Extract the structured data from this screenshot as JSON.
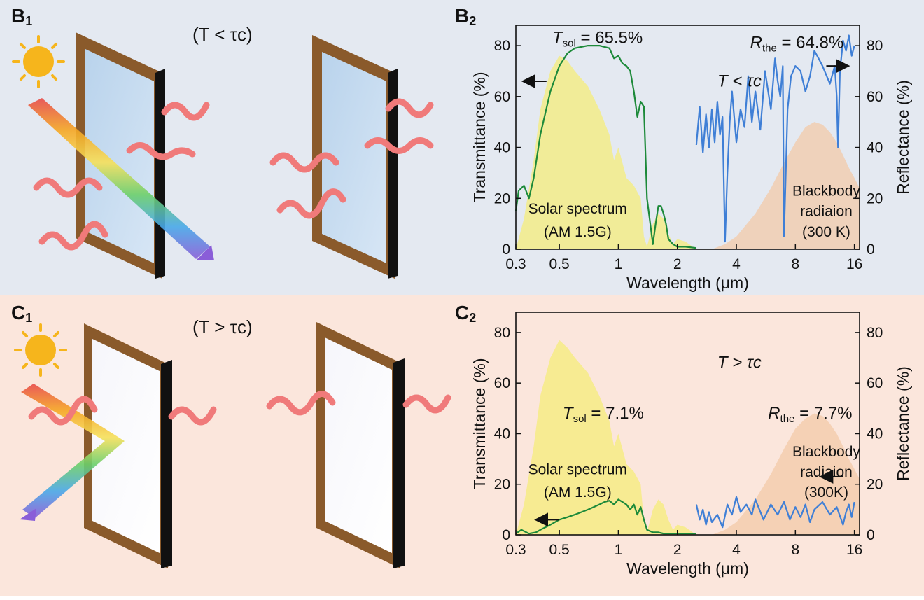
{
  "panels": {
    "top": {
      "label_left": "B",
      "label_left_sub": "1",
      "label_right": "B",
      "label_right_sub": "2",
      "condition": "(T < τc)",
      "background": "#e4e9f1"
    },
    "bottom": {
      "label_left": "C",
      "label_left_sub": "1",
      "label_right": "C",
      "label_right_sub": "2",
      "condition": "(T > τc)",
      "background": "#fbe6dc"
    }
  },
  "icons": {
    "sun": "sun-icon",
    "moon": "crescent-moon-icon",
    "window": "window-icon",
    "heat_wave": "heat-wave-arrow-icon",
    "sunlight_beam": "rainbow-sunlight-beam-icon"
  },
  "colors": {
    "transmittance": "#1d8a3a",
    "reflectance": "#3f7fd6",
    "solar_fill": "#f5ec7a",
    "blackbody_fill": "#f3c9a8",
    "heat_wave": "#f07a7a",
    "sun": "#f6b51c",
    "moon": "#3d86d6",
    "frame": "#8a5a2b"
  },
  "chart_data": [
    {
      "type": "line",
      "panel": "B2",
      "xlabel": "Wavelength (μm)",
      "ylabel": "Transmittance (%)",
      "ylabel_right": "Reflectance (%)",
      "x_scale": "log",
      "xlim": [
        0.3,
        17
      ],
      "ylim": [
        0,
        88
      ],
      "xticks": [
        0.3,
        0.5,
        1,
        2,
        4,
        8,
        16
      ],
      "xtick_labels": [
        "0.3",
        "0.5",
        "1",
        "2",
        "4",
        "8",
        "16"
      ],
      "yticks": [
        0,
        20,
        40,
        60,
        80
      ],
      "ytick_labels": [
        "0",
        "20",
        "40",
        "60",
        "80"
      ],
      "condition": "T < τc",
      "annotations": {
        "tsol_symbol": "T",
        "tsol_sub": "sol",
        "tsol_value": " = 65.5%",
        "rthe_symbol": "R",
        "rthe_sub": "the",
        "rthe_value": " = 64.8%",
        "solar_label_1": "Solar spectrum",
        "solar_label_2": "(AM 1.5G)",
        "blackbody_label_1": "Blackbody",
        "blackbody_label_2": "radiaion",
        "blackbody_label_3": "(300 K)"
      },
      "series": [
        {
          "role": "transmittance",
          "axis": "left",
          "x": [
            0.3,
            0.31,
            0.33,
            0.35,
            0.37,
            0.4,
            0.45,
            0.5,
            0.55,
            0.6,
            0.7,
            0.8,
            0.9,
            0.95,
            1.0,
            1.05,
            1.1,
            1.15,
            1.2,
            1.25,
            1.3,
            1.35,
            1.4,
            1.5,
            1.55,
            1.6,
            1.65,
            1.7,
            1.75,
            1.8,
            1.9,
            2.0,
            2.2,
            2.5
          ],
          "y": [
            15,
            23,
            25,
            20,
            28,
            45,
            62,
            72,
            77,
            79,
            80,
            80,
            79,
            75,
            76,
            73,
            72,
            70,
            62,
            52,
            58,
            56,
            20,
            2,
            10,
            17,
            17,
            14,
            10,
            4,
            2,
            1,
            1,
            0.5
          ]
        },
        {
          "role": "reflectance",
          "axis": "right",
          "x": [
            2.5,
            2.6,
            2.7,
            2.8,
            2.9,
            3.0,
            3.1,
            3.2,
            3.3,
            3.4,
            3.5,
            3.6,
            3.7,
            3.8,
            4.0,
            4.2,
            4.4,
            4.6,
            4.8,
            5.0,
            5.3,
            5.6,
            6.0,
            6.3,
            6.5,
            6.7,
            6.9,
            7.0,
            7.3,
            7.6,
            8.0,
            8.5,
            9.0,
            9.5,
            10.0,
            10.5,
            11.0,
            12.0,
            12.7,
            13.0,
            13.2,
            13.5,
            14.0,
            14.5,
            15.0,
            15.5,
            16.0
          ],
          "y": [
            41,
            56,
            38,
            53,
            40,
            55,
            42,
            58,
            45,
            52,
            3,
            30,
            50,
            62,
            42,
            55,
            48,
            68,
            50,
            62,
            47,
            70,
            55,
            75,
            66,
            60,
            72,
            5,
            55,
            68,
            72,
            70,
            62,
            68,
            78,
            75,
            72,
            65,
            72,
            60,
            40,
            70,
            82,
            78,
            84,
            76,
            80
          ]
        }
      ],
      "fills": [
        {
          "role": "solar_spectrum",
          "x": [
            0.3,
            0.33,
            0.37,
            0.4,
            0.45,
            0.5,
            0.55,
            0.6,
            0.7,
            0.8,
            0.9,
            0.95,
            1.0,
            1.1,
            1.2,
            1.3,
            1.35,
            1.4,
            1.5,
            1.6,
            1.7,
            1.8,
            1.9,
            2.0,
            2.2,
            2.5
          ],
          "y": [
            0,
            12,
            35,
            55,
            70,
            76,
            74,
            70,
            64,
            55,
            45,
            35,
            40,
            28,
            25,
            20,
            5,
            1,
            10,
            14,
            12,
            6,
            2,
            4,
            3,
            0
          ]
        },
        {
          "role": "blackbody",
          "x": [
            3.0,
            3.5,
            4.0,
            5.0,
            6.0,
            7.0,
            8.0,
            9.0,
            10.0,
            11.0,
            12.0,
            13.0,
            14.0,
            15.0,
            16.0,
            17.0
          ],
          "y": [
            0,
            2,
            5,
            14,
            24,
            34,
            42,
            48,
            50,
            49,
            46,
            42,
            37,
            32,
            28,
            24
          ]
        }
      ]
    },
    {
      "type": "line",
      "panel": "C2",
      "xlabel": "Wavelength (μm)",
      "ylabel": "Transmittance (%)",
      "ylabel_right": "Reflectance (%)",
      "x_scale": "log",
      "xlim": [
        0.3,
        17
      ],
      "ylim": [
        0,
        88
      ],
      "xticks": [
        0.3,
        0.5,
        1,
        2,
        4,
        8,
        16
      ],
      "xtick_labels": [
        "0.3",
        "0.5",
        "1",
        "2",
        "4",
        "8",
        "16"
      ],
      "yticks": [
        0,
        20,
        40,
        60,
        80
      ],
      "ytick_labels": [
        "0",
        "20",
        "40",
        "60",
        "80"
      ],
      "condition": "T > τc",
      "annotations": {
        "tsol_symbol": "T",
        "tsol_sub": "sol",
        "tsol_value": " = 7.1%",
        "rthe_symbol": "R",
        "rthe_sub": "the",
        "rthe_value": " = 7.7%",
        "solar_label_1": "Solar spectrum",
        "solar_label_2": "(AM 1.5G)",
        "blackbody_label_1": "Blackbody",
        "blackbody_label_2": "radiaion",
        "blackbody_label_3": "(300K)"
      },
      "series": [
        {
          "role": "transmittance",
          "axis": "left",
          "x": [
            0.3,
            0.32,
            0.35,
            0.38,
            0.4,
            0.45,
            0.5,
            0.55,
            0.6,
            0.7,
            0.8,
            0.85,
            0.9,
            0.95,
            1.0,
            1.05,
            1.1,
            1.15,
            1.2,
            1.25,
            1.3,
            1.35,
            1.4,
            1.5,
            1.6,
            1.7,
            1.8,
            2.0,
            2.2,
            2.5
          ],
          "y": [
            0.5,
            2,
            0.5,
            1,
            2,
            4,
            6,
            7,
            8,
            10,
            12,
            13,
            13.5,
            12,
            14,
            13,
            12,
            10,
            12,
            8,
            11,
            6,
            2,
            1,
            1,
            0.5,
            0.5,
            0.5,
            0.5,
            0.5
          ]
        },
        {
          "role": "reflectance",
          "axis": "right",
          "x": [
            2.5,
            2.6,
            2.7,
            2.8,
            2.9,
            3.0,
            3.2,
            3.4,
            3.6,
            3.8,
            4.0,
            4.2,
            4.5,
            4.8,
            5.0,
            5.5,
            6.0,
            6.5,
            7.0,
            7.5,
            8.0,
            8.5,
            9.0,
            9.5,
            10.0,
            11.0,
            12.0,
            13.0,
            14.0,
            14.5,
            15.0,
            15.5,
            16.0
          ],
          "y": [
            12,
            6,
            10,
            4,
            9,
            5,
            8,
            3,
            12,
            8,
            15,
            9,
            12,
            8,
            14,
            6,
            12,
            8,
            13,
            6,
            11,
            7,
            12,
            5,
            10,
            13,
            8,
            11,
            4,
            9,
            12,
            7,
            13
          ]
        }
      ],
      "fills": [
        {
          "role": "solar_spectrum",
          "x": [
            0.3,
            0.33,
            0.37,
            0.4,
            0.45,
            0.5,
            0.55,
            0.6,
            0.7,
            0.8,
            0.9,
            0.95,
            1.0,
            1.1,
            1.2,
            1.3,
            1.35,
            1.4,
            1.5,
            1.6,
            1.7,
            1.8,
            1.9,
            2.0,
            2.2,
            2.5
          ],
          "y": [
            0,
            12,
            35,
            55,
            70,
            77,
            74,
            70,
            64,
            55,
            45,
            35,
            40,
            28,
            25,
            20,
            5,
            1,
            10,
            14,
            12,
            6,
            2,
            4,
            3,
            0
          ]
        },
        {
          "role": "blackbody",
          "x": [
            3.0,
            3.5,
            4.0,
            5.0,
            6.0,
            7.0,
            8.0,
            9.0,
            10.0,
            11.0,
            12.0,
            13.0,
            14.0,
            15.0,
            16.0,
            17.0
          ],
          "y": [
            0,
            2,
            5,
            14,
            24,
            34,
            42,
            46,
            48,
            47,
            44,
            40,
            35,
            30,
            26,
            22
          ]
        }
      ]
    }
  ]
}
